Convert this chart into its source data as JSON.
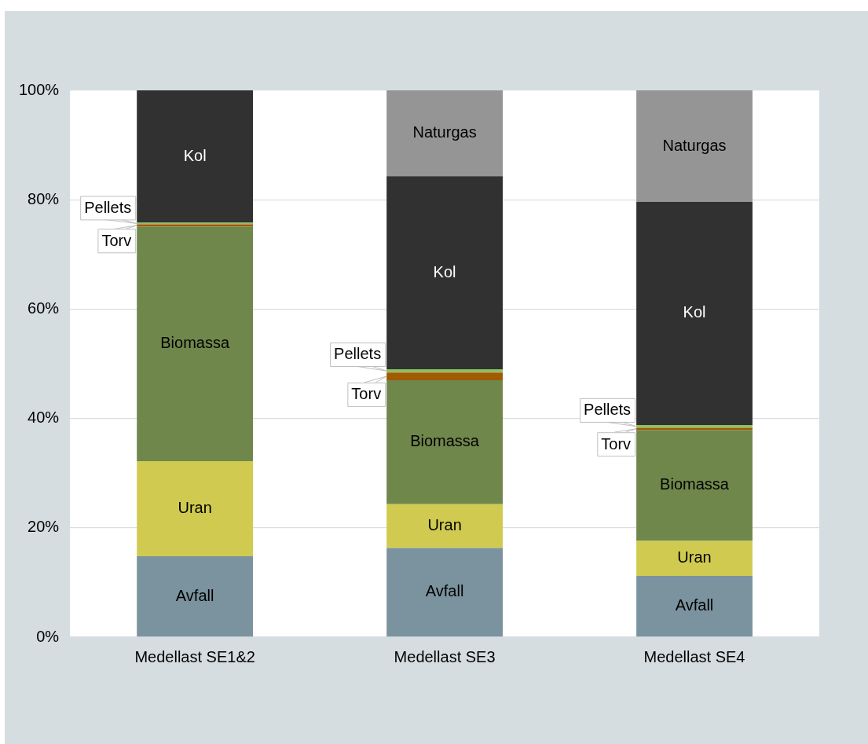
{
  "chart_data": {
    "type": "bar",
    "stacked": true,
    "legend": false,
    "grid": "y",
    "categories": [
      "Medellast SE1&2",
      "Medellast SE3",
      "Medellast SE4"
    ],
    "ylim": [
      0,
      100
    ],
    "yticks": [
      {
        "value": 0,
        "label": "0%"
      },
      {
        "value": 20,
        "label": "20%"
      },
      {
        "value": 40,
        "label": "40%"
      },
      {
        "value": 60,
        "label": "60%"
      },
      {
        "value": 80,
        "label": "80%"
      },
      {
        "value": 100,
        "label": "100%"
      }
    ],
    "series": [
      {
        "name": "Avfall",
        "color": "#7b939f",
        "values": [
          14.8,
          16.3,
          11.2
        ]
      },
      {
        "name": "Uran",
        "color": "#d0cb50",
        "values": [
          17.4,
          8.0,
          6.4
        ]
      },
      {
        "name": "Biomassa",
        "color": "#70874c",
        "values": [
          42.9,
          22.7,
          20.3
        ]
      },
      {
        "name": "Torv",
        "color": "#a05a00",
        "values": [
          0.4,
          1.4,
          0.4
        ]
      },
      {
        "name": "Pellets",
        "color": "#8fbf62",
        "values": [
          0.3,
          0.6,
          0.5
        ]
      },
      {
        "name": "Kol",
        "color": "#313131",
        "values": [
          24.2,
          35.3,
          40.8
        ]
      },
      {
        "name": "Naturgas",
        "color": "#959595",
        "values": [
          0,
          15.7,
          20.4
        ]
      }
    ]
  }
}
